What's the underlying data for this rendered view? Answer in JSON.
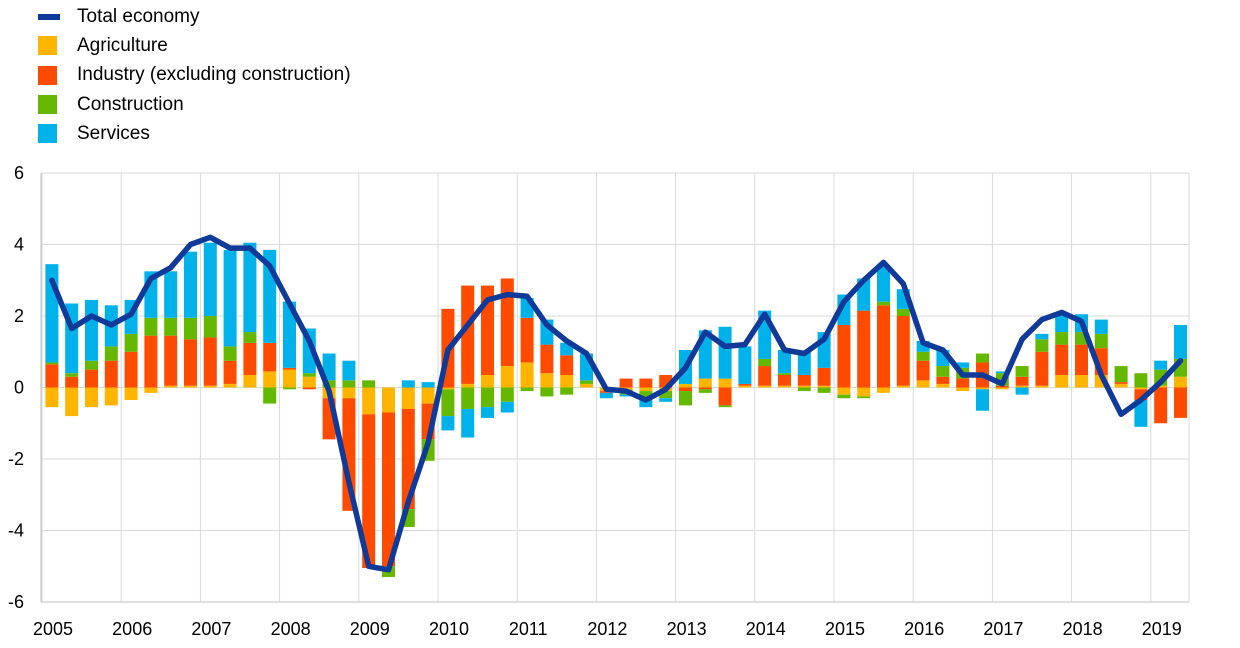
{
  "legend": [
    {
      "label": "Total economy",
      "color": "#0f3a99",
      "kind": "line"
    },
    {
      "label": "Agriculture",
      "color": "#ffb400",
      "kind": "bar"
    },
    {
      "label": "Industry (excluding construction)",
      "color": "#ff4b00",
      "kind": "bar"
    },
    {
      "label": "Construction",
      "color": "#65b800",
      "kind": "bar"
    },
    {
      "label": "Services",
      "color": "#00b1ea",
      "kind": "bar"
    }
  ],
  "chart_data": {
    "type": "bar",
    "stacked": true,
    "title": "",
    "xlabel": "",
    "ylabel": "",
    "ylim": [
      -6,
      6
    ],
    "yticks": [
      "6",
      "4",
      "2",
      "0",
      "-2",
      "-4",
      "-6"
    ],
    "xticks": [
      "2005",
      "2006",
      "2007",
      "2008",
      "2009",
      "2010",
      "2011",
      "2012",
      "2013",
      "2014",
      "2015",
      "2016",
      "2017",
      "2018",
      "2019"
    ],
    "categories": [
      "2005Q1",
      "2005Q2",
      "2005Q3",
      "2005Q4",
      "2006Q1",
      "2006Q2",
      "2006Q3",
      "2006Q4",
      "2007Q1",
      "2007Q2",
      "2007Q3",
      "2007Q4",
      "2008Q1",
      "2008Q2",
      "2008Q3",
      "2008Q4",
      "2009Q1",
      "2009Q2",
      "2009Q3",
      "2009Q4",
      "2010Q1",
      "2010Q2",
      "2010Q3",
      "2010Q4",
      "2011Q1",
      "2011Q2",
      "2011Q3",
      "2011Q4",
      "2012Q1",
      "2012Q2",
      "2012Q3",
      "2012Q4",
      "2013Q1",
      "2013Q2",
      "2013Q3",
      "2013Q4",
      "2014Q1",
      "2014Q2",
      "2014Q3",
      "2014Q4",
      "2015Q1",
      "2015Q2",
      "2015Q3",
      "2015Q4",
      "2016Q1",
      "2016Q2",
      "2016Q3",
      "2016Q4",
      "2017Q1",
      "2017Q2",
      "2017Q3",
      "2017Q4",
      "2018Q1",
      "2018Q2",
      "2018Q3",
      "2018Q4",
      "2019Q1",
      "2019Q2"
    ],
    "series": [
      {
        "name": "Agriculture",
        "values": [
          -0.55,
          -0.8,
          -0.55,
          -0.5,
          -0.35,
          -0.15,
          0.05,
          0.05,
          0.05,
          0.1,
          0.35,
          0.45,
          0.5,
          0.3,
          -0.3,
          -0.3,
          -0.75,
          -0.7,
          -0.6,
          -0.45,
          -0.05,
          0.1,
          0.35,
          0.6,
          0.7,
          0.4,
          0.35,
          0.1,
          -0.1,
          -0.05,
          -0.1,
          -0.1,
          0.1,
          0.25,
          0.25,
          0.05,
          0.05,
          0.05,
          0.05,
          0.05,
          -0.2,
          -0.25,
          -0.15,
          0.05,
          0.2,
          0.1,
          -0.1,
          -0.05,
          -0.05,
          0.05,
          0.05,
          0.35,
          0.35,
          0.35,
          0.1,
          -0.05,
          0.05,
          0.3
        ]
      },
      {
        "name": "Industry (excluding construction)",
        "values": [
          0.65,
          0.3,
          0.5,
          0.75,
          1.0,
          1.45,
          1.4,
          1.3,
          1.35,
          0.65,
          0.9,
          0.8,
          0.05,
          -0.05,
          -1.15,
          -3.15,
          -4.3,
          -4.3,
          -2.8,
          -1.0,
          2.2,
          2.75,
          2.5,
          2.45,
          1.25,
          0.8,
          0.55,
          0.0,
          -0.05,
          0.25,
          0.25,
          0.35,
          -0.1,
          -0.05,
          -0.5,
          0.05,
          0.55,
          0.3,
          0.3,
          0.5,
          1.75,
          2.15,
          2.3,
          1.95,
          0.55,
          0.2,
          0.25,
          0.7,
          0.05,
          0.25,
          0.95,
          0.85,
          0.85,
          0.75,
          0.05,
          -0.3,
          -1.0,
          -0.85
        ]
      },
      {
        "name": "Construction",
        "values": [
          0.05,
          0.1,
          0.25,
          0.4,
          0.5,
          0.5,
          0.5,
          0.6,
          0.6,
          0.4,
          0.3,
          -0.45,
          -0.05,
          0.1,
          0.2,
          0.2,
          0.2,
          -0.3,
          -0.5,
          -0.6,
          -0.75,
          -0.6,
          -0.55,
          -0.4,
          -0.1,
          -0.25,
          -0.2,
          0.1,
          0.0,
          -0.15,
          -0.25,
          -0.2,
          -0.4,
          -0.1,
          -0.05,
          0.0,
          0.2,
          0.05,
          -0.1,
          -0.15,
          -0.1,
          -0.05,
          0.1,
          0.2,
          0.25,
          0.3,
          0.3,
          0.25,
          0.35,
          0.3,
          0.35,
          0.35,
          0.35,
          0.4,
          0.45,
          0.4,
          0.45,
          0.5
        ]
      },
      {
        "name": "Services",
        "values": [
          2.75,
          1.95,
          1.7,
          1.15,
          0.95,
          1.3,
          1.3,
          1.85,
          2.05,
          2.7,
          2.5,
          2.6,
          1.85,
          1.25,
          0.75,
          0.55,
          0.0,
          0.0,
          0.2,
          0.15,
          -0.4,
          -0.8,
          -0.3,
          -0.3,
          0.55,
          0.7,
          0.35,
          0.75,
          -0.15,
          -0.05,
          -0.2,
          -0.1,
          0.95,
          1.35,
          1.45,
          1.05,
          1.35,
          0.65,
          0.65,
          1.0,
          0.85,
          0.9,
          1.0,
          0.55,
          0.3,
          0.45,
          0.15,
          -0.6,
          0.05,
          -0.2,
          0.15,
          0.55,
          0.5,
          0.4,
          0.0,
          -0.75,
          0.25,
          0.95
        ]
      },
      {
        "name": "Total economy",
        "type": "line",
        "values": [
          3.0,
          1.65,
          2.0,
          1.75,
          2.05,
          3.05,
          3.35,
          4.0,
          4.2,
          3.9,
          3.9,
          3.4,
          2.35,
          1.3,
          -0.1,
          -2.65,
          -5.0,
          -5.1,
          -3.2,
          -1.55,
          1.05,
          1.75,
          2.45,
          2.6,
          2.55,
          1.75,
          1.3,
          0.95,
          -0.05,
          -0.1,
          -0.35,
          -0.05,
          0.55,
          1.55,
          1.15,
          1.2,
          2.05,
          1.05,
          0.95,
          1.35,
          2.4,
          3.0,
          3.5,
          2.9,
          1.25,
          1.05,
          0.35,
          0.35,
          0.1,
          1.35,
          1.9,
          2.1,
          1.85,
          0.35,
          -0.75,
          -0.35,
          0.15,
          0.75
        ]
      }
    ]
  }
}
